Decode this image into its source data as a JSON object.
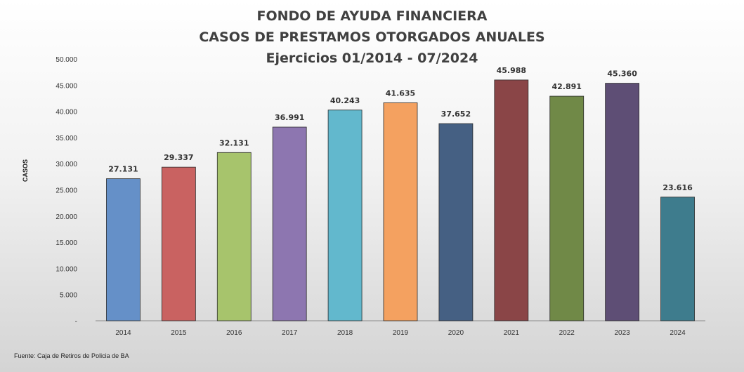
{
  "chart_data": {
    "type": "bar",
    "title": "FONDO DE AYUDA FINANCIERA",
    "subtitle": "CASOS DE PRESTAMOS OTORGADOS ANUALES",
    "subtitle2": "Ejercicios 01/2014 - 07/2024",
    "xlabel": "",
    "ylabel": "CASOS",
    "source": "Fuente: Caja de Retiros de Policia de BA",
    "categories": [
      "2014",
      "2015",
      "2016",
      "2017",
      "2018",
      "2019",
      "2020",
      "2021",
      "2022",
      "2023",
      "2024"
    ],
    "values": [
      27131,
      29337,
      32131,
      36991,
      40243,
      41635,
      37652,
      45988,
      42891,
      45360,
      23616
    ],
    "value_labels": [
      "27.131",
      "29.337",
      "32.131",
      "36.991",
      "40.243",
      "41.635",
      "37.652",
      "45.988",
      "42.891",
      "45.360",
      "23.616"
    ],
    "ylim": [
      0,
      50000
    ],
    "y_ticks": [
      0,
      5000,
      10000,
      15000,
      20000,
      25000,
      30000,
      35000,
      40000,
      45000,
      50000
    ],
    "y_tick_labels": [
      "-",
      "5.000",
      "10.000",
      "15.000",
      "20.000",
      "25.000",
      "30.000",
      "35.000",
      "40.000",
      "45.000",
      "50.000"
    ],
    "grid": false,
    "legend": "none",
    "colors": [
      "#6590c8",
      "#c96261",
      "#a7c46c",
      "#8d76b0",
      "#62b8cd",
      "#f4a160",
      "#456083",
      "#8a4547",
      "#708947",
      "#5e4e75",
      "#3e7c8d"
    ]
  }
}
